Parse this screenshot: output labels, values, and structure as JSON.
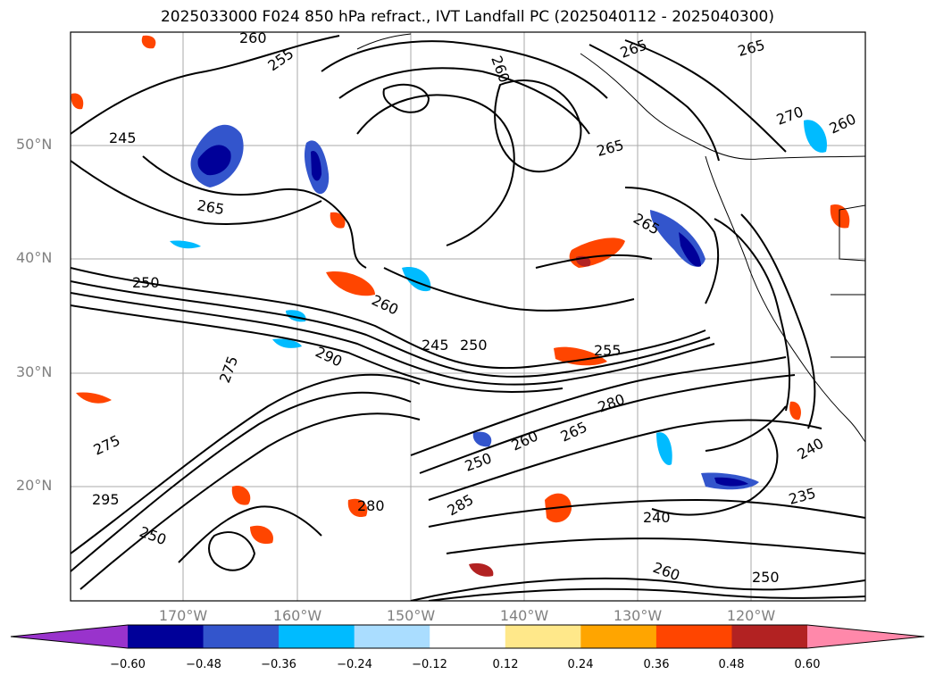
{
  "title": "2025033000 F024 850 hPa refract., IVT Landfall PC (2025040112 - 2025040300)",
  "latitude_labels": [
    "50°N",
    "40°N",
    "30°N",
    "20°N"
  ],
  "longitude_labels": [
    "170°W",
    "160°W",
    "150°W",
    "140°W",
    "130°W",
    "120°W"
  ],
  "contour_labels": [
    "260",
    "255",
    "265",
    "245",
    "265",
    "265",
    "260",
    "265",
    "270",
    "260",
    "250",
    "260",
    "265",
    "290",
    "275",
    "245",
    "250",
    "255",
    "280",
    "295",
    "275",
    "250",
    "265",
    "260",
    "240",
    "235",
    "240",
    "250",
    "260",
    "280",
    "250",
    "285"
  ],
  "colorbar": {
    "ticks": [
      "−0.60",
      "−0.48",
      "−0.36",
      "−0.24",
      "−0.12",
      "0.12",
      "0.24",
      "0.36",
      "0.48",
      "0.60"
    ],
    "colors": [
      "#9933cc",
      "#000099",
      "#3355cc",
      "#00bbff",
      "#aaddff",
      "#ffffff",
      "#ffe88a",
      "#ffa500",
      "#ff4500",
      "#b22222",
      "#ff88aa"
    ]
  }
}
